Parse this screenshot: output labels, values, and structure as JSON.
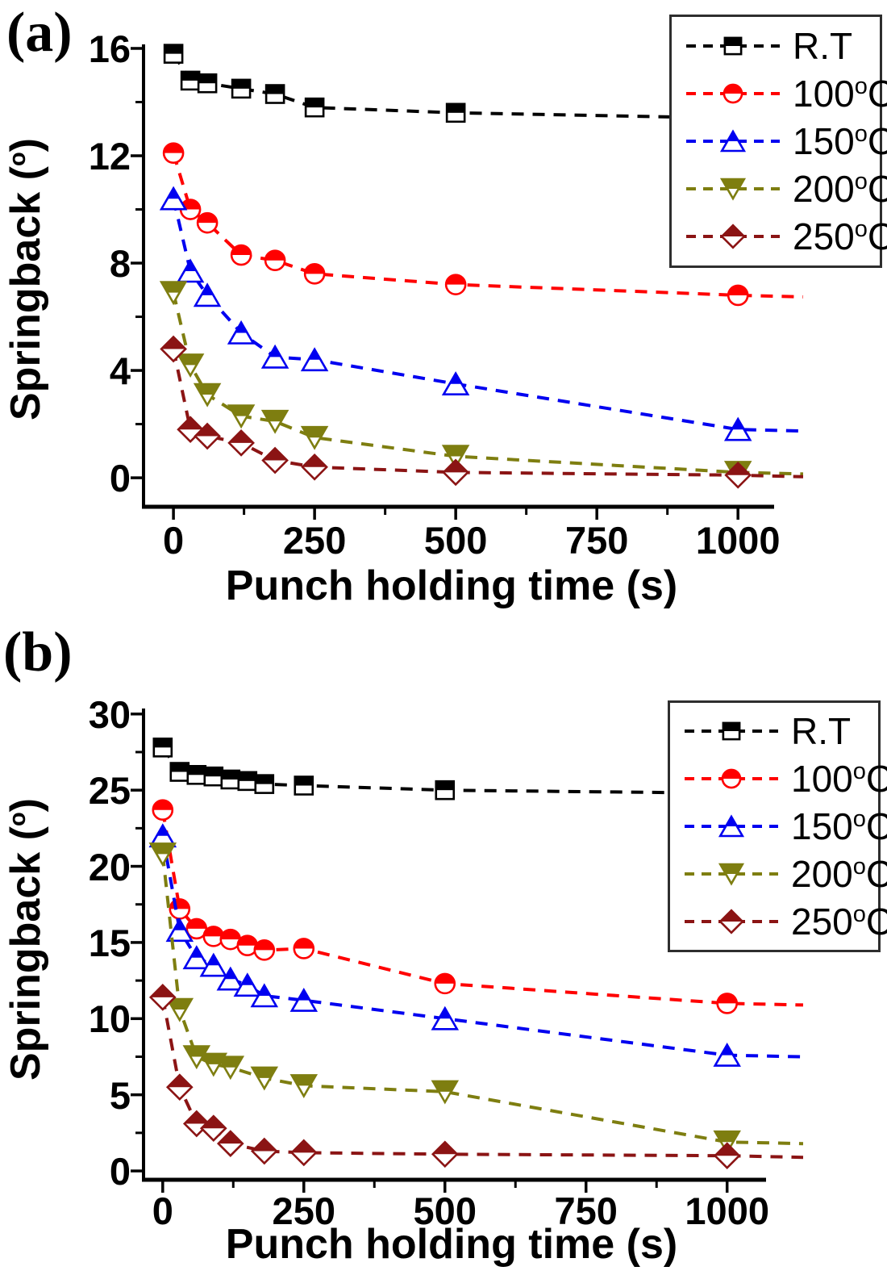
{
  "figure": {
    "background": "#FFFFFF"
  },
  "panel_labels": [
    {
      "text": "(a)"
    },
    {
      "text": "(b)"
    }
  ],
  "chart_data": [
    {
      "id": "a",
      "type": "line-scatter",
      "title": "",
      "xlabel": "Punch holding time (s)",
      "ylabel_pre": "Springback (",
      "ylabel_sup": "o",
      "ylabel_post": ")",
      "xlim": [
        -53,
        1064
      ],
      "ylim": [
        -1.08,
        16.15
      ],
      "x_major_ticks": [
        0,
        250,
        500,
        750,
        1000
      ],
      "x_minor_ticks": [
        125,
        375,
        625,
        875
      ],
      "y_major_ticks": [
        0,
        4,
        8,
        12,
        16
      ],
      "y_minor_ticks": [
        2,
        6,
        10,
        14
      ],
      "grid": false,
      "line_style": "dashed",
      "legend_position": "top-right",
      "series": [
        {
          "name": "R.T",
          "color": "#000000",
          "marker": "half-square",
          "x": [
            0,
            30,
            60,
            120,
            180,
            250,
            500,
            1000
          ],
          "y": [
            15.8,
            14.8,
            14.7,
            14.5,
            14.3,
            13.8,
            13.6,
            13.4
          ]
        },
        {
          "name": "100°C",
          "color": "#FF0000",
          "marker": "half-circle",
          "x": [
            0,
            30,
            60,
            120,
            180,
            250,
            500,
            1000
          ],
          "y": [
            12.1,
            10.0,
            9.5,
            8.3,
            8.1,
            7.6,
            7.2,
            6.8
          ]
        },
        {
          "name": "150°C",
          "color": "#0000F0",
          "marker": "half-triangle-up",
          "x": [
            0,
            30,
            60,
            120,
            180,
            250,
            500,
            1000
          ],
          "y": [
            10.4,
            7.7,
            6.8,
            5.4,
            4.5,
            4.4,
            3.5,
            1.8
          ]
        },
        {
          "name": "200°C",
          "color": "#7E7E10",
          "marker": "half-triangle-down",
          "x": [
            0,
            30,
            60,
            120,
            180,
            250,
            500,
            1000
          ],
          "y": [
            6.9,
            4.2,
            3.1,
            2.3,
            2.1,
            1.5,
            0.8,
            0.2
          ]
        },
        {
          "name": "250°C",
          "color": "#8B1414",
          "marker": "half-diamond",
          "x": [
            0,
            30,
            60,
            120,
            180,
            250,
            500,
            1000
          ],
          "y": [
            4.8,
            1.8,
            1.55,
            1.3,
            0.65,
            0.4,
            0.2,
            0.1
          ]
        }
      ],
      "legend_entries": [
        {
          "pre": "R.T",
          "sup": "",
          "post": ""
        },
        {
          "pre": "100",
          "sup": "o",
          "post": "C"
        },
        {
          "pre": "150",
          "sup": "o",
          "post": "C"
        },
        {
          "pre": "200",
          "sup": "o",
          "post": "C"
        },
        {
          "pre": "250",
          "sup": "o",
          "post": "C"
        }
      ]
    },
    {
      "id": "b",
      "type": "line-scatter",
      "title": "",
      "xlabel": "Punch holding time (s)",
      "ylabel_pre": "Springback (",
      "ylabel_sup": "o",
      "ylabel_post": ")",
      "xlim": [
        -34,
        1069
      ],
      "ylim": [
        -0.58,
        30.36
      ],
      "x_major_ticks": [
        0,
        250,
        500,
        750,
        1000
      ],
      "x_minor_ticks": [
        125,
        375,
        625,
        875
      ],
      "y_major_ticks": [
        0,
        5,
        10,
        15,
        20,
        25,
        30
      ],
      "y_minor_ticks": [
        2.5,
        7.5,
        12.5,
        17.5,
        22.5,
        27.5
      ],
      "grid": false,
      "line_style": "dashed",
      "legend_position": "top-right",
      "series": [
        {
          "name": "R.T",
          "color": "#000000",
          "marker": "half-square",
          "x": [
            0,
            30,
            60,
            90,
            120,
            150,
            180,
            250,
            500,
            1000
          ],
          "y": [
            27.8,
            26.2,
            26.0,
            25.9,
            25.7,
            25.6,
            25.4,
            25.3,
            25.0,
            24.8
          ]
        },
        {
          "name": "100°C",
          "color": "#FF0000",
          "marker": "half-circle",
          "x": [
            0,
            30,
            60,
            90,
            120,
            150,
            180,
            250,
            500,
            1000
          ],
          "y": [
            23.7,
            17.2,
            15.9,
            15.4,
            15.2,
            14.8,
            14.5,
            14.6,
            12.3,
            11.0
          ]
        },
        {
          "name": "150°C",
          "color": "#0000F0",
          "marker": "half-triangle-up",
          "x": [
            0,
            30,
            60,
            90,
            120,
            150,
            180,
            250,
            500,
            1000
          ],
          "y": [
            22.0,
            15.8,
            14.0,
            13.5,
            12.6,
            12.2,
            11.5,
            11.2,
            10.0,
            7.6
          ]
        },
        {
          "name": "200°C",
          "color": "#7E7E10",
          "marker": "half-triangle-down",
          "x": [
            0,
            30,
            60,
            90,
            120,
            180,
            250,
            500,
            1000
          ],
          "y": [
            20.8,
            10.6,
            7.5,
            7.0,
            6.8,
            6.1,
            5.6,
            5.2,
            1.9
          ]
        },
        {
          "name": "250°C",
          "color": "#8B1414",
          "marker": "half-diamond",
          "x": [
            0,
            30,
            60,
            90,
            120,
            180,
            250,
            500,
            1000
          ],
          "y": [
            11.4,
            5.5,
            3.1,
            2.8,
            1.8,
            1.3,
            1.2,
            1.1,
            1.0
          ]
        }
      ],
      "legend_entries": [
        {
          "pre": "R.T",
          "sup": "",
          "post": ""
        },
        {
          "pre": "100",
          "sup": "o",
          "post": "C"
        },
        {
          "pre": "150",
          "sup": "o",
          "post": "C"
        },
        {
          "pre": "200",
          "sup": "o",
          "post": "C"
        },
        {
          "pre": "250",
          "sup": "o",
          "post": "C"
        }
      ]
    }
  ]
}
